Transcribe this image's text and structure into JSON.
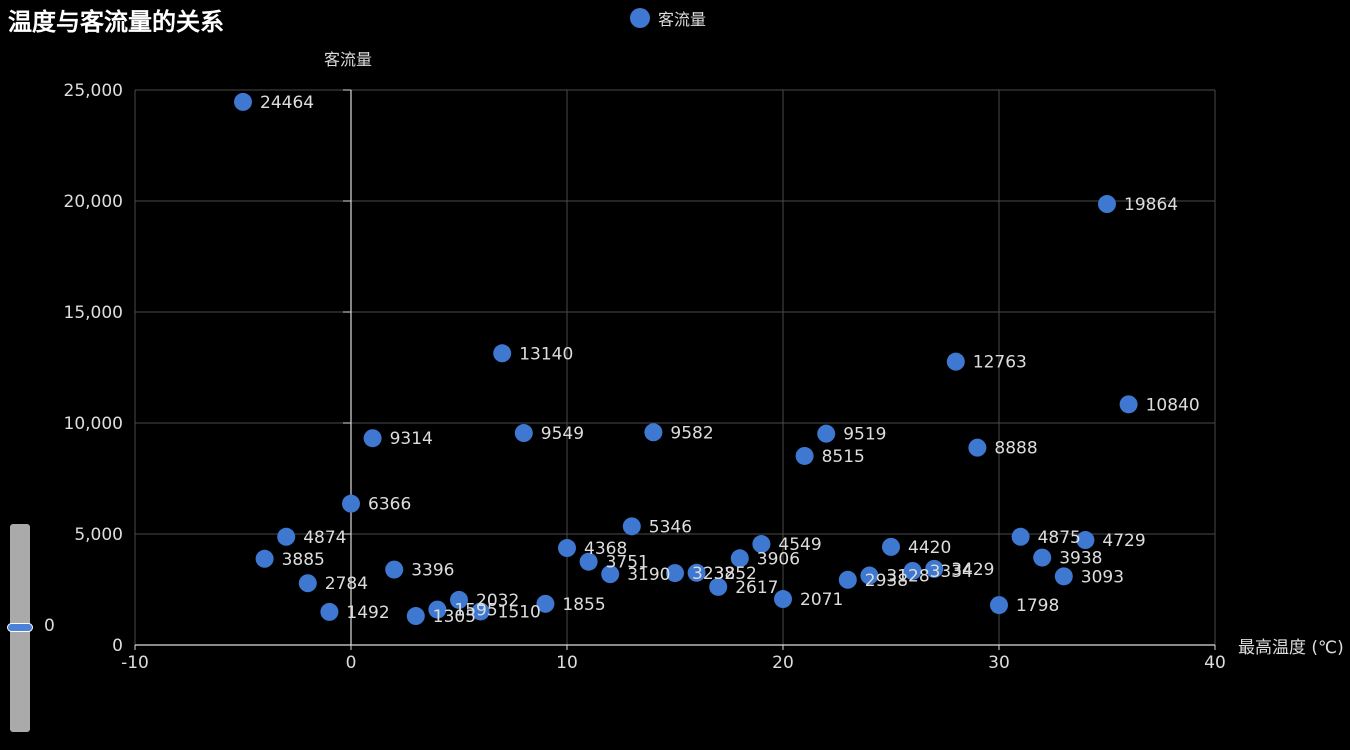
{
  "chart_data": {
    "type": "scatter",
    "title": "温度与客流量的关系",
    "xlabel": "最高温度 (℃)",
    "ylabel": "客流量",
    "xlim": [
      -10,
      40
    ],
    "ylim": [
      0,
      25000
    ],
    "x_ticks": [
      "-10",
      "0",
      "10",
      "20",
      "30",
      "40"
    ],
    "y_ticks": [
      "0",
      "5,000",
      "10,000",
      "15,000",
      "20,000",
      "25,000"
    ],
    "legend_position": "top-center",
    "grid": true,
    "colors": {
      "series": "#3e78d0",
      "grid": "#4a4a4a",
      "text": "#dddddd"
    },
    "series": [
      {
        "name": "客流量",
        "points": [
          {
            "x": -5,
            "y": 24464,
            "label": "24464"
          },
          {
            "x": -4,
            "y": 3885,
            "label": "3885"
          },
          {
            "x": -3,
            "y": 4874,
            "label": "4874"
          },
          {
            "x": -2,
            "y": 2784,
            "label": "2784"
          },
          {
            "x": -1,
            "y": 1492,
            "label": "1492"
          },
          {
            "x": 0,
            "y": 6366,
            "label": "6366"
          },
          {
            "x": 1,
            "y": 9314,
            "label": "9314"
          },
          {
            "x": 2,
            "y": 3396,
            "label": "3396"
          },
          {
            "x": 3,
            "y": 1305,
            "label": "1305"
          },
          {
            "x": 4,
            "y": 1595,
            "label": "1595"
          },
          {
            "x": 5,
            "y": 2032,
            "label": "2032"
          },
          {
            "x": 6,
            "y": 1510,
            "label": "1510"
          },
          {
            "x": 7,
            "y": 13140,
            "label": "13140"
          },
          {
            "x": 8,
            "y": 9549,
            "label": "9549"
          },
          {
            "x": 9,
            "y": 1855,
            "label": "1855"
          },
          {
            "x": 10,
            "y": 4368,
            "label": "4368"
          },
          {
            "x": 11,
            "y": 3751,
            "label": "3751"
          },
          {
            "x": 12,
            "y": 3190,
            "label": "3190"
          },
          {
            "x": 13,
            "y": 5346,
            "label": "5346"
          },
          {
            "x": 14,
            "y": 9582,
            "label": "9582"
          },
          {
            "x": 15,
            "y": 3238,
            "label": "3238"
          },
          {
            "x": 16,
            "y": 3252,
            "label": "3252"
          },
          {
            "x": 17,
            "y": 2617,
            "label": "2617"
          },
          {
            "x": 18,
            "y": 3906,
            "label": "3906"
          },
          {
            "x": 19,
            "y": 4549,
            "label": "4549"
          },
          {
            "x": 20,
            "y": 2071,
            "label": "2071"
          },
          {
            "x": 21,
            "y": 8515,
            "label": "8515"
          },
          {
            "x": 22,
            "y": 9519,
            "label": "9519"
          },
          {
            "x": 23,
            "y": 2938,
            "label": "2938"
          },
          {
            "x": 24,
            "y": 3128,
            "label": "3128"
          },
          {
            "x": 25,
            "y": 4420,
            "label": "4420"
          },
          {
            "x": 26,
            "y": 3334,
            "label": "3334"
          },
          {
            "x": 27,
            "y": 3429,
            "label": "3429"
          },
          {
            "x": 28,
            "y": 12763,
            "label": "12763"
          },
          {
            "x": 29,
            "y": 8888,
            "label": "8888"
          },
          {
            "x": 30,
            "y": 1798,
            "label": "1798"
          },
          {
            "x": 31,
            "y": 4875,
            "label": "4875"
          },
          {
            "x": 32,
            "y": 3938,
            "label": "3938"
          },
          {
            "x": 33,
            "y": 3093,
            "label": "3093"
          },
          {
            "x": 34,
            "y": 4729,
            "label": "4729"
          },
          {
            "x": 35,
            "y": 19864,
            "label": "19864"
          },
          {
            "x": 36,
            "y": 10840,
            "label": "10840"
          }
        ]
      }
    ]
  },
  "visual_map": {
    "value": "0"
  }
}
